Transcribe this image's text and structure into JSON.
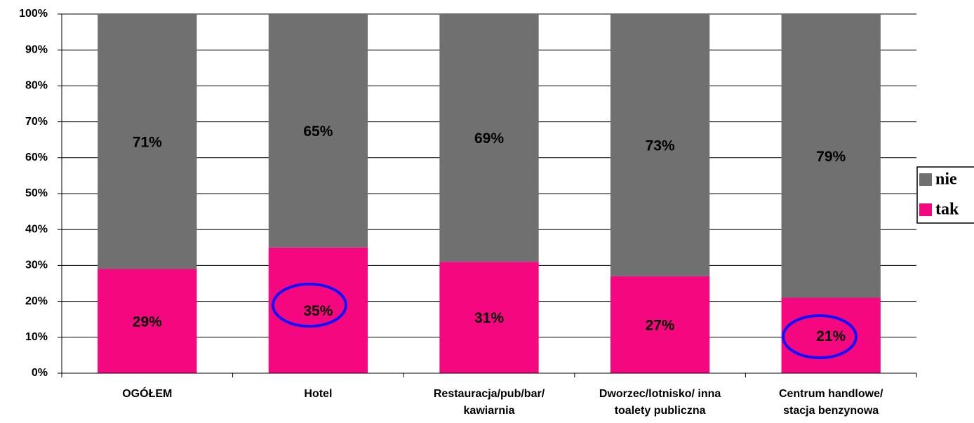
{
  "chart_data": {
    "type": "stacked_bar",
    "categories": [
      "OGÓŁEM",
      "Hotel",
      "Restauracja/pub/bar/\nkawiarnia",
      "Dworzec/lotnisko/ inna\ntoalety publiczna",
      "Centrum handlowe/\nstacja benzynowa"
    ],
    "series": [
      {
        "name": "tak",
        "color": "#f5087f",
        "values": [
          29,
          35,
          31,
          27,
          21
        ],
        "value_labels": [
          "29%",
          "35%",
          "31%",
          "27%",
          "21%"
        ]
      },
      {
        "name": "nie",
        "color": "#707070",
        "values": [
          71,
          65,
          69,
          73,
          79
        ],
        "value_labels": [
          "71%",
          "65%",
          "69%",
          "73%",
          "79%"
        ]
      }
    ],
    "ylim": [
      0,
      100
    ],
    "yticks": [
      {
        "value": 0,
        "label": "0%"
      },
      {
        "value": 10,
        "label": "10%"
      },
      {
        "value": 20,
        "label": "20%"
      },
      {
        "value": 30,
        "label": "30%"
      },
      {
        "value": 40,
        "label": "40%"
      },
      {
        "value": 50,
        "label": "50%"
      },
      {
        "value": 60,
        "label": "60%"
      },
      {
        "value": 70,
        "label": "70%"
      },
      {
        "value": 80,
        "label": "80%"
      },
      {
        "value": 90,
        "label": "90%"
      },
      {
        "value": 100,
        "label": "100%"
      }
    ],
    "grid": true,
    "legend": "right"
  }
}
